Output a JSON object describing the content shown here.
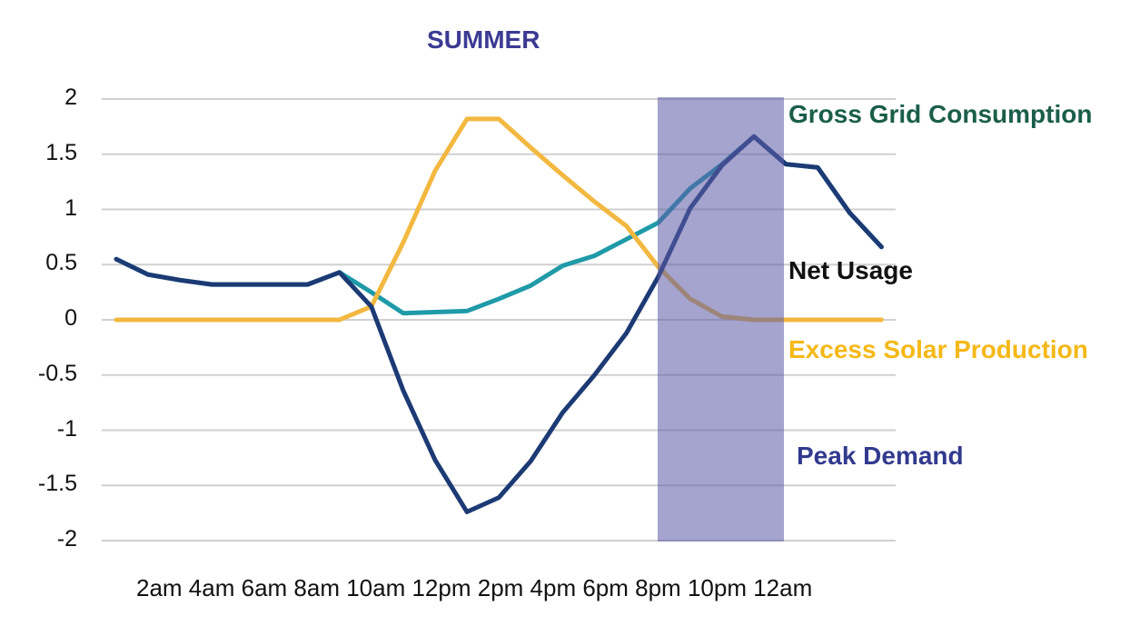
{
  "chart_data": {
    "type": "line",
    "title": "SUMMER",
    "xlabel": "",
    "ylabel": "",
    "ylim": [
      -2,
      2
    ],
    "yticks": [
      "2",
      "1.5",
      "1",
      "0.5",
      "0",
      "-0.5",
      "-1",
      "-1.5",
      "-2"
    ],
    "xtick_labels": [
      "2am",
      "4am",
      "6am",
      "8am",
      "10am",
      "12pm",
      "2pm",
      "4pm",
      "6pm",
      "8pm",
      "10pm",
      "12am"
    ],
    "x": [
      "12am",
      "1am",
      "2am",
      "3am",
      "4am",
      "5am",
      "6am",
      "7am",
      "8am",
      "9am",
      "10am",
      "11am",
      "12pm",
      "1pm",
      "2pm",
      "3pm",
      "4pm",
      "5pm",
      "6pm",
      "7pm",
      "8pm",
      "9pm",
      "10pm",
      "11pm",
      "12am"
    ],
    "grid": true,
    "legend_position": "inline-right",
    "series": [
      {
        "name": "Gross Grid Consumption",
        "color": "#1f9aa8",
        "values": [
          0.55,
          0.41,
          0.36,
          0.32,
          0.32,
          0.32,
          0.32,
          0.43,
          0.25,
          0.06,
          0.07,
          0.08,
          0.19,
          0.31,
          0.49,
          0.58,
          0.73,
          0.88,
          1.19,
          1.41,
          1.66,
          1.41,
          1.38,
          0.97,
          0.66
        ]
      },
      {
        "name": "Net Usage",
        "color": "#1c3a74",
        "values": [
          0.55,
          0.41,
          0.36,
          0.32,
          0.32,
          0.32,
          0.32,
          0.43,
          0.12,
          -0.64,
          -1.27,
          -1.74,
          -1.61,
          -1.28,
          -0.84,
          -0.5,
          -0.12,
          0.39,
          1.01,
          1.4,
          1.66,
          1.41,
          1.38,
          0.97,
          0.66
        ]
      },
      {
        "name": "Excess Solar Production",
        "color": "#f2b840",
        "values": [
          0,
          0,
          0,
          0,
          0,
          0,
          0,
          0,
          0.12,
          0.7,
          1.35,
          1.82,
          1.82,
          1.56,
          1.31,
          1.07,
          0.85,
          0.48,
          0.19,
          0.03,
          0.0,
          0.0,
          0.0,
          0.0,
          0.0
        ]
      }
    ],
    "shaded_regions": [
      {
        "name": "Peak Demand",
        "x_start": "5pm",
        "x_end": "9pm",
        "color": "#8080bb"
      }
    ],
    "annotations": [
      {
        "text": "Gross Grid Consumption",
        "color": "#1a5e4a"
      },
      {
        "text": "Net Usage",
        "color": "#111111"
      },
      {
        "text": "Excess Solar Production",
        "color": "#f5b817"
      },
      {
        "text": "Peak Demand",
        "color": "#323a8e"
      }
    ]
  },
  "title": "SUMMER",
  "x_axis_text": "2am 4am 6am 8am 10am 12pm 2pm 4pm 6pm 8pm 10pm 12am",
  "colors": {
    "title": "#3b3b94",
    "grid": "#d0d0d0",
    "peak_band": "#8c8cc2"
  }
}
